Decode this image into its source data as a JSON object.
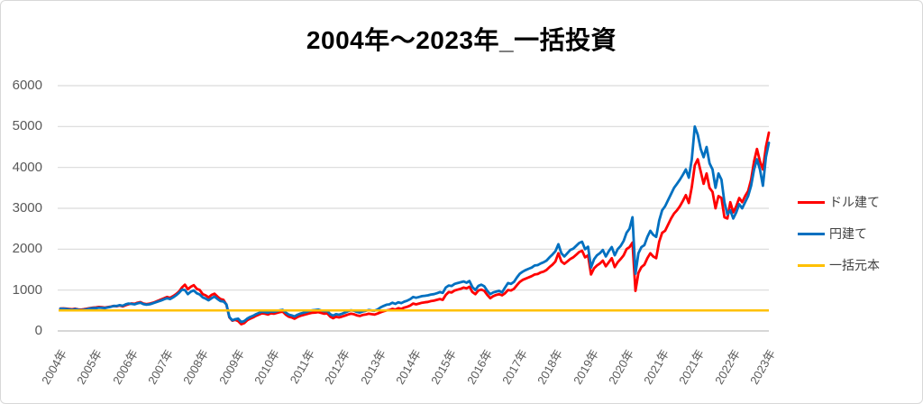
{
  "title": "2004年〜2023年_一括投資",
  "colors": {
    "usd_line": "#FF0000",
    "jpy_line": "#0070C0",
    "principal_line": "#FFC000",
    "gridline": "#D9D9D9",
    "axis_line": "#BFBFBF",
    "tick_label": "#595959",
    "background": "#FFFFFF"
  },
  "legend": [
    {
      "key": "usd-series",
      "label": "ドル建て",
      "color": "#FF0000"
    },
    {
      "key": "jpy-series",
      "label": "円建て",
      "color": "#0070C0"
    },
    {
      "key": "principal-series",
      "label": "一括元本",
      "color": "#FFC000"
    }
  ],
  "chart_data": {
    "type": "line",
    "title": "2004年〜2023年_一括投資",
    "xlabel": "",
    "ylabel": "",
    "frequency": "monthly",
    "x_range": [
      "2004-01",
      "2023-12"
    ],
    "ylim": [
      0,
      6000
    ],
    "y_ticks": [
      0,
      1000,
      2000,
      3000,
      4000,
      5000,
      6000
    ],
    "grid": "horizontal",
    "legend_position": "right",
    "x_tick_labels": [
      "2004年",
      "2005年",
      "2006年",
      "2007年",
      "2008年",
      "2009年",
      "2010年",
      "2011年",
      "2012年",
      "2013年",
      "2014年",
      "2015年",
      "2016年",
      "2017年",
      "2018年",
      "2019年",
      "2020年",
      "2021年",
      "2021年",
      "2022年",
      "2023年"
    ],
    "series": [
      {
        "key": "usd-series",
        "name": "ドル建て",
        "color": "#FF0000",
        "values": [
          550,
          552,
          545,
          538,
          530,
          544,
          527,
          520,
          531,
          545,
          560,
          572,
          576,
          586,
          580,
          571,
          585,
          596,
          610,
          605,
          621,
          601,
          631,
          652,
          672,
          665,
          691,
          706,
          671,
          656,
          666,
          686,
          711,
          741,
          771,
          801,
          831,
          811,
          851,
          901,
          961,
          1061,
          1131,
          1021,
          1081,
          1121,
          1031,
          1001,
          901,
          871,
          821,
          881,
          911,
          841,
          781,
          761,
          641,
          331,
          251,
          271,
          241,
          166,
          191,
          261,
          301,
          331,
          371,
          401,
          431,
          421,
          401,
          431,
          421,
          441,
          461,
          471,
          401,
          351,
          331,
          301,
          341,
          371,
          391,
          411,
          431,
          446,
          451,
          461,
          441,
          421,
          431,
          351,
          311,
          346,
          331,
          351,
          376,
          401,
          421,
          411,
          381,
          366,
          391,
          401,
          421,
          411,
          401,
          426,
          456,
          481,
          501,
          511,
          541,
          521,
          556,
          541,
          571,
          591,
          621,
          671,
          651,
          671,
          691,
          701,
          711,
          731,
          741,
          761,
          781,
          761,
          881,
          951,
          941,
          991,
          1011,
          1031,
          1061,
          1041,
          1081,
          951,
          901,
          991,
          1011,
          981,
          881,
          801,
          851,
          881,
          901,
          871,
          921,
          1001,
          991,
          1031,
          1121,
          1201,
          1251,
          1281,
          1311,
          1341,
          1381,
          1391,
          1431,
          1451,
          1491,
          1561,
          1621,
          1701,
          1901,
          1701,
          1641,
          1701,
          1761,
          1801,
          1861,
          1931,
          1961,
          1801,
          1851,
          1381,
          1531,
          1601,
          1651,
          1721,
          1581,
          1681,
          1781,
          1561,
          1681,
          1761,
          1851,
          2001,
          2051,
          2161,
          981,
          1421,
          1561,
          1621,
          1781,
          1901,
          1821,
          1781,
          2181,
          2401,
          2451,
          2601,
          2751,
          2871,
          2951,
          3051,
          3181,
          3321,
          3131,
          3521,
          4051,
          4201,
          3901,
          3601,
          3851,
          3501,
          3401,
          3001,
          3301,
          3251,
          2781,
          2751,
          3151,
          2901,
          3051,
          3251,
          3151,
          3301,
          3421,
          3701,
          4151,
          4451,
          4151,
          3951,
          4501,
          4851
        ]
      },
      {
        "key": "jpy-series",
        "name": "円建て",
        "color": "#0070C0",
        "values": [
          545,
          542,
          535,
          527,
          517,
          533,
          518,
          508,
          518,
          532,
          552,
          558,
          558,
          572,
          568,
          561,
          576,
          591,
          611,
          611,
          631,
          616,
          651,
          671,
          661,
          651,
          676,
          691,
          656,
          641,
          651,
          671,
          696,
          721,
          746,
          776,
          801,
          781,
          821,
          871,
          931,
          1011,
          1001,
          901,
          961,
          991,
          921,
          891,
          821,
          791,
          751,
          801,
          841,
          781,
          731,
          721,
          651,
          341,
          261,
          286,
          301,
          221,
          241,
          301,
          341,
          371,
          411,
          441,
          471,
          461,
          446,
          476,
          466,
          486,
          506,
          516,
          451,
          401,
          381,
          356,
          396,
          426,
          446,
          466,
          491,
          506,
          511,
          521,
          501,
          481,
          491,
          411,
          376,
          411,
          396,
          421,
          451,
          481,
          506,
          496,
          466,
          451,
          476,
          491,
          511,
          501,
          496,
          526,
          576,
          611,
          641,
          651,
          691,
          661,
          701,
          681,
          716,
          741,
          776,
          831,
          811,
          831,
          851,
          861,
          871,
          891,
          901,
          921,
          951,
          931,
          1061,
          1111,
          1101,
          1151,
          1171,
          1191,
          1211,
          1181,
          1221,
          1071,
          1001,
          1101,
          1131,
          1091,
          981,
          901,
          941,
          961,
          981,
          941,
          1061,
          1171,
          1151,
          1201,
          1311,
          1401,
          1451,
          1491,
          1521,
          1551,
          1601,
          1611,
          1651,
          1681,
          1721,
          1801,
          1871,
          1951,
          2121,
          1901,
          1821,
          1901,
          1981,
          2011,
          2081,
          2151,
          2181,
          2001,
          2061,
          1551,
          1751,
          1851,
          1901,
          1981,
          1821,
          1951,
          2051,
          1851,
          2001,
          2081,
          2201,
          2401,
          2501,
          2781,
          1401,
          1901,
          2051,
          2101,
          2301,
          2451,
          2351,
          2301,
          2701,
          2951,
          3051,
          3201,
          3351,
          3501,
          3601,
          3701,
          3821,
          3951,
          3751,
          4201,
          5001,
          4801,
          4451,
          4251,
          4501,
          4101,
          3951,
          3501,
          3851,
          3701,
          3151,
          2851,
          2951,
          2751,
          2901,
          3101,
          3001,
          3151,
          3301,
          3551,
          3951,
          4201,
          3951,
          3551,
          4251,
          4601
        ]
      },
      {
        "key": "principal-series",
        "name": "一括元本",
        "color": "#FFC000",
        "constant": 500
      }
    ]
  }
}
